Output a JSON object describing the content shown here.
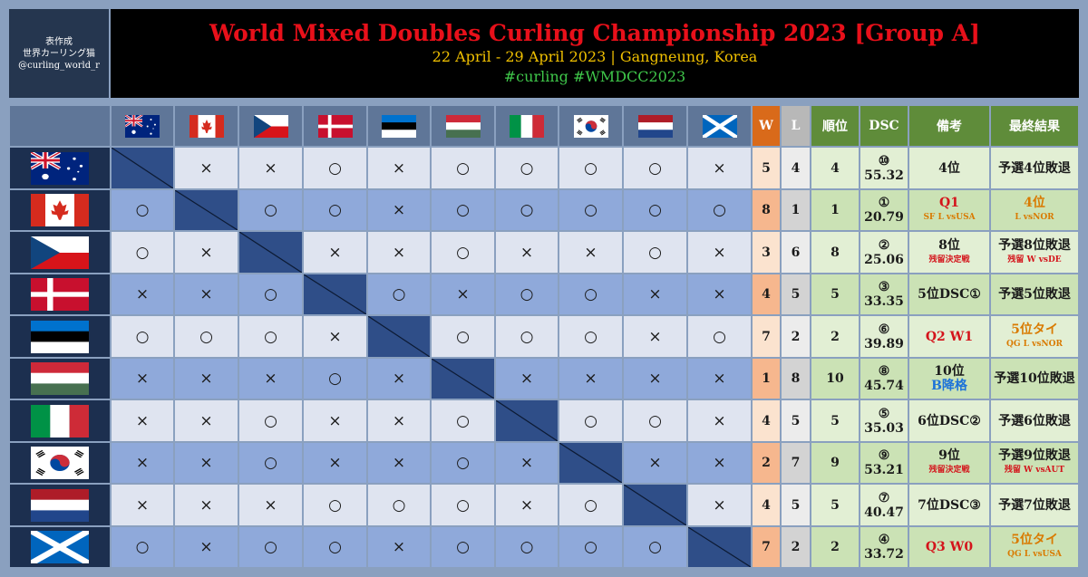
{
  "credit": [
    "表作成",
    "世界カーリング猫",
    "@curling_world_r"
  ],
  "header": {
    "title": "World Mixed Doubles Curling Championship 2023 [Group A]",
    "subtitle": "22 April - 29 April 2023 | Gangneung, Korea",
    "hashtags": "#curling #WMDCC2023"
  },
  "columns": {
    "w": "W",
    "l": "L",
    "rank": "順位",
    "dsc": "DSC",
    "notes": "備考",
    "final": "最終結果"
  },
  "teams": [
    {
      "flag": "australia-flag",
      "results": [
        "",
        "×",
        "×",
        "○",
        "×",
        "○",
        "○",
        "○",
        "○",
        "×"
      ],
      "w": "5",
      "l": "4",
      "rank": "4",
      "dsc_mark": "⑩",
      "dsc": "55.32",
      "note_main": "4位",
      "note_sub": "",
      "note_color": "dark",
      "note_sub_color": "dark",
      "final_main": "予選4位敗退",
      "final_sub": "",
      "final_color": "dark",
      "final_sub_color": "dark"
    },
    {
      "flag": "canada-flag",
      "results": [
        "○",
        "",
        "○",
        "○",
        "×",
        "○",
        "○",
        "○",
        "○",
        "○"
      ],
      "w": "8",
      "l": "1",
      "rank": "1",
      "dsc_mark": "①",
      "dsc": "20.79",
      "note_main": "Q1",
      "note_sub": "SF L vsUSA",
      "note_color": "red",
      "note_sub_color": "orange",
      "final_main": "4位",
      "final_sub": "L vsNOR",
      "final_color": "orange",
      "final_sub_color": "orange"
    },
    {
      "flag": "czech-flag",
      "results": [
        "○",
        "×",
        "",
        "×",
        "×",
        "○",
        "×",
        "×",
        "○",
        "×"
      ],
      "w": "3",
      "l": "6",
      "rank": "8",
      "dsc_mark": "②",
      "dsc": "25.06",
      "note_main": "8位",
      "note_sub": "残留決定戦",
      "note_color": "dark",
      "note_sub_color": "red",
      "final_main": "予選8位敗退",
      "final_sub": "残留 W vsDE",
      "final_color": "dark",
      "final_sub_color": "red"
    },
    {
      "flag": "denmark-flag",
      "results": [
        "×",
        "×",
        "○",
        "",
        "○",
        "×",
        "○",
        "○",
        "×",
        "×"
      ],
      "w": "4",
      "l": "5",
      "rank": "5",
      "dsc_mark": "③",
      "dsc": "33.35",
      "note_main": "5位DSC①",
      "note_sub": "",
      "note_color": "dark",
      "note_sub_color": "dark",
      "final_main": "予選5位敗退",
      "final_sub": "",
      "final_color": "dark",
      "final_sub_color": "dark"
    },
    {
      "flag": "estonia-flag",
      "results": [
        "○",
        "○",
        "○",
        "×",
        "",
        "○",
        "○",
        "○",
        "×",
        "○"
      ],
      "w": "7",
      "l": "2",
      "rank": "2",
      "dsc_mark": "⑥",
      "dsc": "39.89",
      "note_main": "Q2 W1",
      "note_sub": "",
      "note_color": "red",
      "note_sub_color": "dark",
      "final_main": "5位タイ",
      "final_sub": "QG L vsNOR",
      "final_color": "orange",
      "final_sub_color": "orange"
    },
    {
      "flag": "hungary-flag",
      "results": [
        "×",
        "×",
        "×",
        "○",
        "×",
        "",
        "×",
        "×",
        "×",
        "×"
      ],
      "w": "1",
      "l": "8",
      "rank": "10",
      "dsc_mark": "⑧",
      "dsc": "45.74",
      "note_main": "10位",
      "note_sub": "B降格",
      "note_color": "dark",
      "note_sub_color": "blue",
      "final_main": "予選10位敗退",
      "final_sub": "",
      "final_color": "dark",
      "final_sub_color": "dark"
    },
    {
      "flag": "italy-flag",
      "results": [
        "×",
        "×",
        "○",
        "×",
        "×",
        "○",
        "",
        "○",
        "○",
        "×"
      ],
      "w": "4",
      "l": "5",
      "rank": "5",
      "dsc_mark": "⑤",
      "dsc": "35.03",
      "note_main": "6位DSC②",
      "note_sub": "",
      "note_color": "dark",
      "note_sub_color": "dark",
      "final_main": "予選6位敗退",
      "final_sub": "",
      "final_color": "dark",
      "final_sub_color": "dark"
    },
    {
      "flag": "korea-flag",
      "results": [
        "×",
        "×",
        "○",
        "×",
        "×",
        "○",
        "×",
        "",
        "×",
        "×"
      ],
      "w": "2",
      "l": "7",
      "rank": "9",
      "dsc_mark": "⑨",
      "dsc": "53.21",
      "note_main": "9位",
      "note_sub": "残留決定戦",
      "note_color": "dark",
      "note_sub_color": "red",
      "final_main": "予選9位敗退",
      "final_sub": "残留 W vsAUT",
      "final_color": "dark",
      "final_sub_color": "red"
    },
    {
      "flag": "netherlands-flag",
      "results": [
        "×",
        "×",
        "×",
        "○",
        "○",
        "○",
        "×",
        "○",
        "",
        "×"
      ],
      "w": "4",
      "l": "5",
      "rank": "5",
      "dsc_mark": "⑦",
      "dsc": "40.47",
      "note_main": "7位DSC③",
      "note_sub": "",
      "note_color": "dark",
      "note_sub_color": "dark",
      "final_main": "予選7位敗退",
      "final_sub": "",
      "final_color": "dark",
      "final_sub_color": "dark"
    },
    {
      "flag": "scotland-flag",
      "results": [
        "○",
        "×",
        "○",
        "○",
        "×",
        "○",
        "○",
        "○",
        "○",
        ""
      ],
      "w": "7",
      "l": "2",
      "rank": "2",
      "dsc_mark": "④",
      "dsc": "33.72",
      "note_main": "Q3 W0",
      "note_sub": "",
      "note_color": "red",
      "note_sub_color": "dark",
      "final_main": "5位タイ",
      "final_sub": "QG L vsUSA",
      "final_color": "orange",
      "final_sub_color": "orange"
    }
  ]
}
